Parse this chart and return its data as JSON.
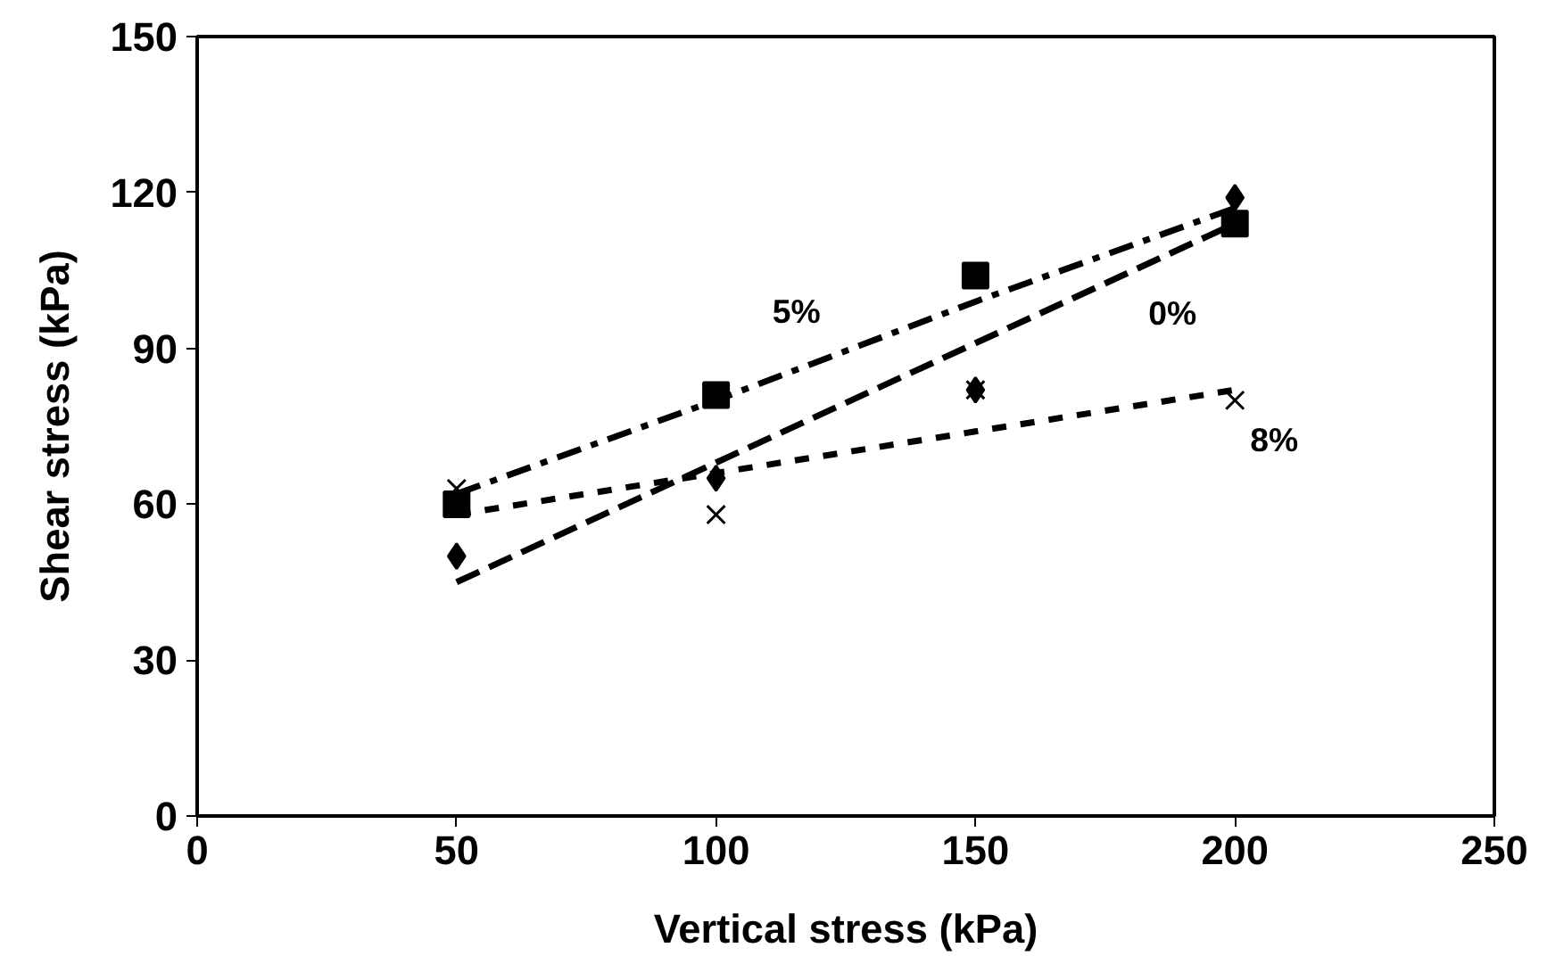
{
  "chart_data": {
    "type": "scatter",
    "xlabel": "Vertical stress (kPa)",
    "ylabel": "Shear stress (kPa)",
    "x": [
      50,
      100,
      150,
      200
    ],
    "series": [
      {
        "marker": "diamond",
        "color": "#000000",
        "values": [
          50,
          65,
          82,
          119
        ]
      },
      {
        "marker": "square",
        "color": "#000000",
        "values": [
          60,
          81,
          104,
          114
        ]
      },
      {
        "marker": "cross",
        "color": "#000000",
        "values": [
          63,
          58,
          82,
          80
        ]
      },
      {
        "type": "line",
        "name": "0%",
        "marker": "none",
        "line_style": "dashed",
        "color": "#000000",
        "values": [
          45,
          68,
          91,
          114
        ]
      },
      {
        "type": "line",
        "name": "5%",
        "marker": "none",
        "line_style": "dashdot",
        "color": "#000000",
        "values": [
          62,
          80,
          99,
          117
        ]
      },
      {
        "type": "line",
        "name": "8%",
        "marker": "none",
        "line_style": "dotted",
        "color": "#000000",
        "values": [
          58,
          66,
          74,
          82
        ]
      }
    ],
    "xlim": [
      0,
      250
    ],
    "ylim": [
      0,
      150
    ],
    "xticks": [
      0,
      50,
      100,
      150,
      200,
      250
    ],
    "yticks": [
      0,
      30,
      60,
      90,
      120,
      150
    ],
    "grid": false
  }
}
